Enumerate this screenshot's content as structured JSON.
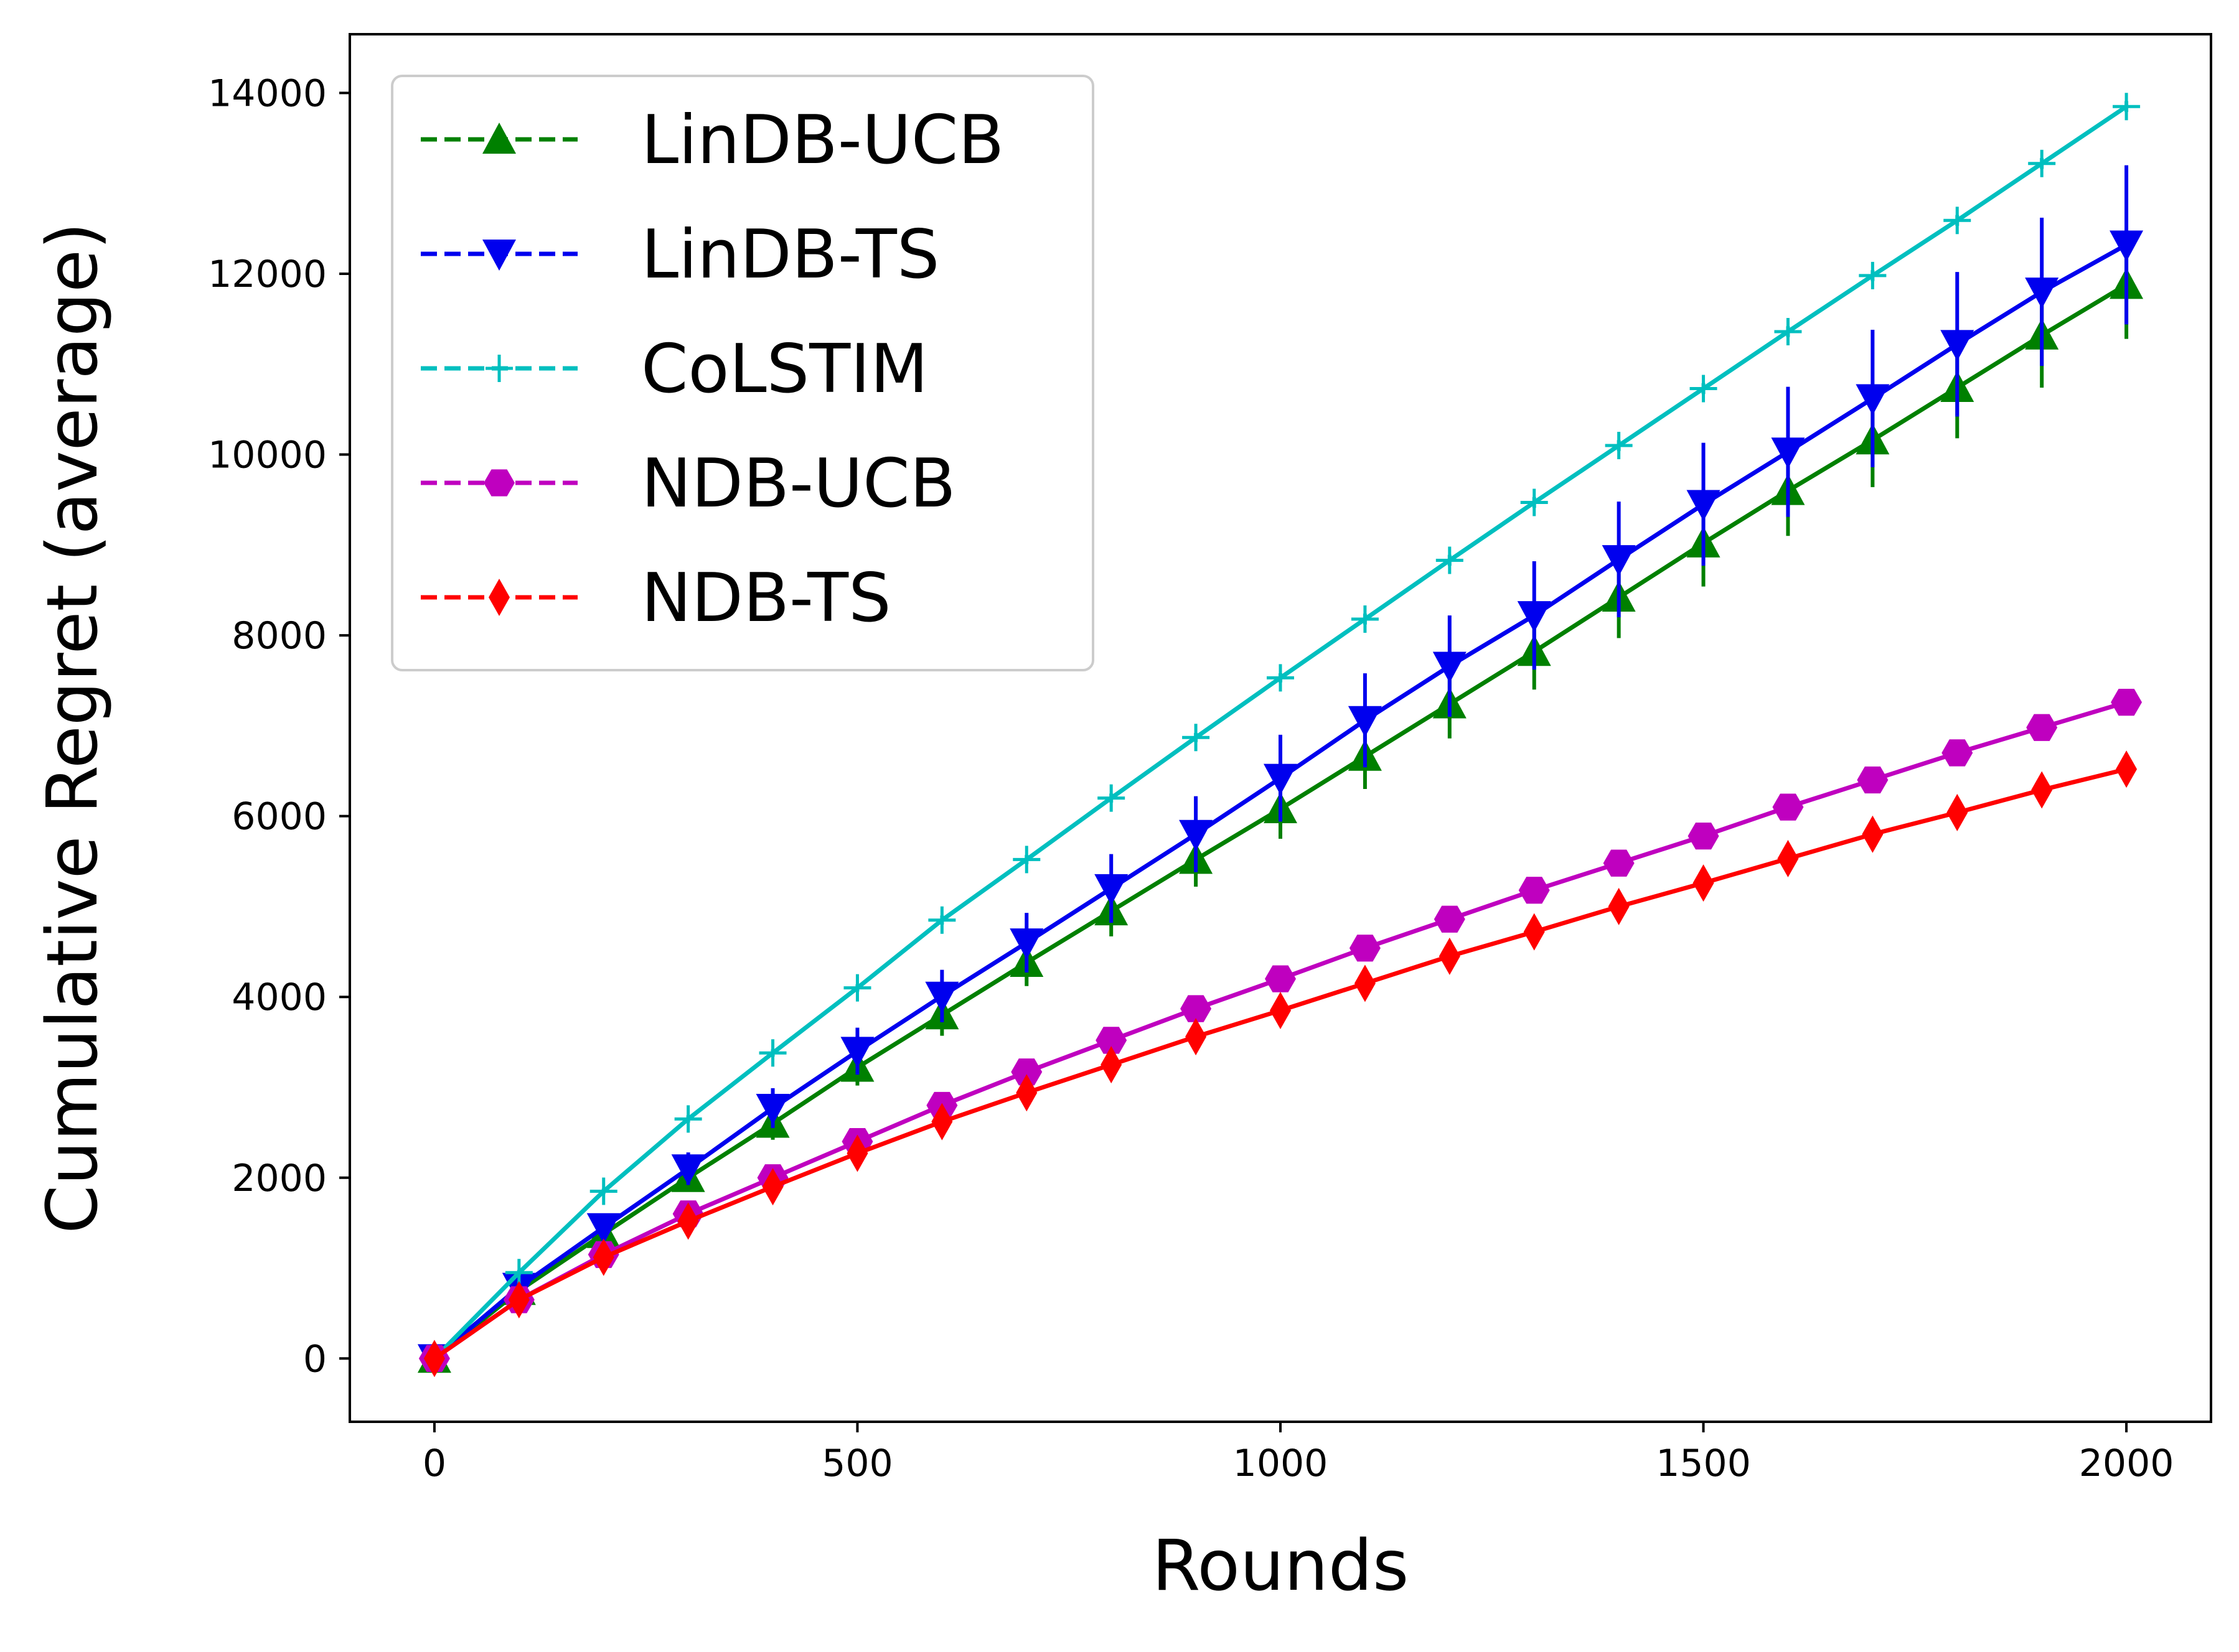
{
  "chart_data": {
    "type": "line",
    "title": "",
    "xlabel": "Rounds",
    "ylabel": "Cumulative Regret (average)",
    "xlim": [
      -100,
      2100
    ],
    "ylim": [
      -700,
      14650
    ],
    "xticks": [
      0,
      500,
      1000,
      1500,
      2000
    ],
    "yticks": [
      0,
      2000,
      4000,
      6000,
      8000,
      10000,
      12000,
      14000
    ],
    "x": [
      0,
      100,
      200,
      300,
      400,
      500,
      600,
      700,
      800,
      900,
      1000,
      1100,
      1200,
      1300,
      1400,
      1500,
      1600,
      1700,
      1800,
      1900,
      2000
    ],
    "legend_position": "top-left",
    "series": [
      {
        "name": "LinDB-UCB",
        "color": "#008000",
        "marker": "triangle-up",
        "values": [
          0,
          750,
          1380,
          2000,
          2600,
          3220,
          3800,
          4380,
          4950,
          5520,
          6080,
          6660,
          7240,
          7820,
          8420,
          9020,
          9600,
          10160,
          10740,
          11320,
          11880
        ],
        "errors": [
          0,
          80,
          120,
          150,
          180,
          200,
          230,
          260,
          280,
          300,
          330,
          360,
          380,
          420,
          450,
          480,
          500,
          520,
          560,
          580,
          600
        ]
      },
      {
        "name": "LinDB-TS",
        "color": "#0000ee",
        "marker": "triangle-down",
        "values": [
          0,
          790,
          1450,
          2100,
          2770,
          3400,
          4010,
          4600,
          5200,
          5800,
          6420,
          7060,
          7660,
          8220,
          8840,
          9450,
          10030,
          10620,
          11220,
          11800,
          12320
        ],
        "errors": [
          0,
          100,
          150,
          180,
          220,
          260,
          290,
          330,
          380,
          420,
          480,
          520,
          560,
          600,
          640,
          680,
          720,
          760,
          800,
          820,
          880
        ]
      },
      {
        "name": "CoLSTIM",
        "color": "#00bfbf",
        "marker": "plus",
        "values": [
          0,
          950,
          1850,
          2650,
          3380,
          4100,
          4850,
          5520,
          6200,
          6870,
          7530,
          8180,
          8830,
          9470,
          10100,
          10730,
          11360,
          11980,
          12590,
          13220,
          13850
        ],
        "errors": [
          0,
          30,
          30,
          40,
          40,
          40,
          50,
          50,
          50,
          50,
          50,
          60,
          60,
          60,
          60,
          60,
          60,
          60,
          60,
          60,
          60
        ]
      },
      {
        "name": "NDB-UCB",
        "color": "#bf00bf",
        "marker": "hexagon",
        "values": [
          0,
          650,
          1150,
          1600,
          2000,
          2400,
          2800,
          3170,
          3520,
          3870,
          4200,
          4540,
          4860,
          5180,
          5480,
          5780,
          6100,
          6400,
          6700,
          6980,
          7260
        ],
        "errors": [
          0,
          20,
          30,
          30,
          40,
          40,
          40,
          40,
          50,
          50,
          50,
          50,
          50,
          50,
          50,
          50,
          50,
          60,
          60,
          60,
          60
        ]
      },
      {
        "name": "NDB-TS",
        "color": "#ff0000",
        "marker": "thin-diamond",
        "values": [
          0,
          650,
          1120,
          1520,
          1900,
          2270,
          2620,
          2940,
          3250,
          3560,
          3850,
          4150,
          4450,
          4720,
          5000,
          5260,
          5530,
          5800,
          6040,
          6290,
          6520
        ],
        "errors": [
          0,
          20,
          30,
          30,
          40,
          40,
          40,
          40,
          50,
          50,
          50,
          50,
          50,
          50,
          50,
          50,
          50,
          60,
          60,
          60,
          60
        ]
      }
    ]
  }
}
